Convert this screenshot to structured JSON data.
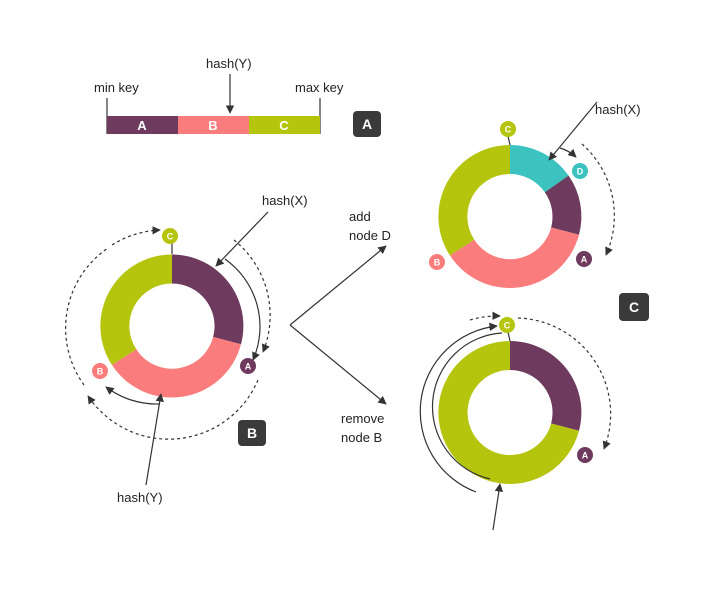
{
  "colors": {
    "A": "#6e3a5e",
    "B": "#fa7c7c",
    "C": "#b5c40d",
    "D": "#3cc3c0",
    "badge": "#3a3a3a",
    "line": "#333333"
  },
  "panel_a": {
    "min_label": "min key",
    "max_label": "max key",
    "hash_label": "hash(Y)",
    "segments": [
      "A",
      "B",
      "C"
    ],
    "badge": "A"
  },
  "panel_b": {
    "hash_x": "hash(X)",
    "hash_y": "hash(Y)",
    "nodes": [
      "C",
      "A",
      "B"
    ],
    "badge": "B"
  },
  "actions": {
    "add_line1": "add",
    "add_line2": "node D",
    "remove_line1": "remove",
    "remove_line2": "node B"
  },
  "panel_c": {
    "hash_x": "hash(X)",
    "top_nodes": [
      "C",
      "D",
      "A",
      "B"
    ],
    "bottom_nodes": [
      "C",
      "A"
    ],
    "badge": "C"
  }
}
